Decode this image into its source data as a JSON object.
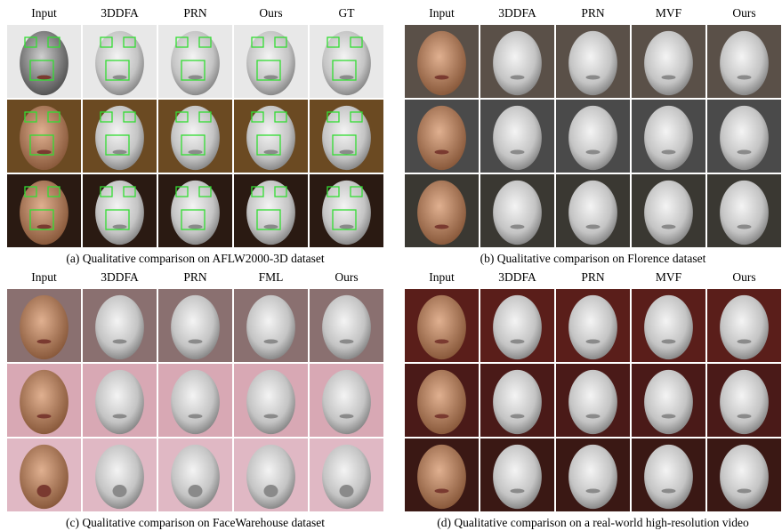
{
  "panels": [
    {
      "headers": [
        "Input",
        "3DDFA",
        "PRN",
        "Ours",
        "GT"
      ],
      "caption": "(a) Qualitative comparison on AFLW2000-3D dataset"
    },
    {
      "headers": [
        "Input",
        "3DDFA",
        "PRN",
        "MVF",
        "Ours"
      ],
      "caption": "(b) Qualitative comparison on Florence dataset"
    },
    {
      "headers": [
        "Input",
        "3DDFA",
        "PRN",
        "FML",
        "Ours"
      ],
      "caption": "(c) Qualitative comparison on FaceWarehouse dataset"
    },
    {
      "headers": [
        "Input",
        "3DDFA",
        "PRN",
        "MVF",
        "Ours"
      ],
      "caption": "(d) Qualitative comparison on a real-world high-resolution video"
    }
  ]
}
